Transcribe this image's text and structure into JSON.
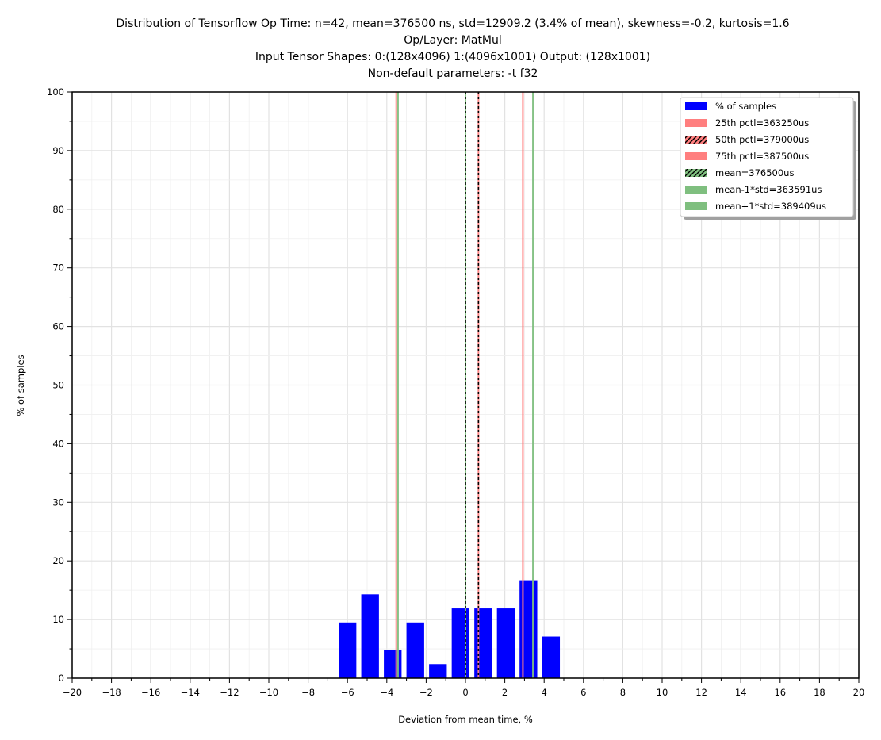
{
  "chart_data": {
    "type": "bar",
    "title": [
      "Distribution of Tensorflow Op Time: n=42, mean=376500 ns, std=12909.2 (3.4% of mean), skewness=-0.2, kurtosis=1.6",
      "Op/Layer: MatMul",
      "Input Tensor Shapes:  0:(128x4096) 1:(4096x1001) Output: (128x1001)",
      "Non-default parameters: -t  f32"
    ],
    "xlabel": "Deviation from mean time, %",
    "ylabel": "% of samples",
    "xlim": [
      -20,
      20
    ],
    "ylim": [
      0,
      100
    ],
    "x_ticks": [
      -20,
      -18,
      -16,
      -14,
      -12,
      -10,
      -8,
      -6,
      -4,
      -2,
      0,
      2,
      4,
      6,
      8,
      10,
      12,
      14,
      16,
      18,
      20
    ],
    "x_tick_labels": [
      "−20",
      "−18",
      "−16",
      "−14",
      "−12",
      "−10",
      "−8",
      "−6",
      "−4",
      "−2",
      "0",
      "2",
      "4",
      "6",
      "8",
      "10",
      "12",
      "14",
      "16",
      "18",
      "20"
    ],
    "y_ticks": [
      0,
      10,
      20,
      30,
      40,
      50,
      60,
      70,
      80,
      90,
      100
    ],
    "y_tick_labels": [
      "0",
      "10",
      "20",
      "30",
      "40",
      "50",
      "60",
      "70",
      "80",
      "90",
      "100"
    ],
    "grid": true,
    "bar_width": 0.9,
    "series": [
      {
        "name": "% of samples",
        "color": "#0000ff",
        "x": [
          -6.0,
          -4.85,
          -3.7,
          -2.55,
          -1.4,
          -0.25,
          0.9,
          2.05,
          3.2,
          4.35
        ],
        "values": [
          9.5,
          14.3,
          4.8,
          9.5,
          2.4,
          11.9,
          11.9,
          11.9,
          16.7,
          7.1
        ]
      }
    ],
    "vlines": [
      {
        "name": "25th pctl=363250us",
        "x": -3.52,
        "color": "#ff7f7f",
        "style": "solid"
      },
      {
        "name": "50th pctl=379000us",
        "x": 0.66,
        "color": "#ff7f7f",
        "style": "hatched"
      },
      {
        "name": "75th pctl=387500us",
        "x": 2.92,
        "color": "#ff7f7f",
        "style": "solid"
      },
      {
        "name": "mean=376500us",
        "x": 0.0,
        "color": "#7fbf7f",
        "style": "hatched"
      },
      {
        "name": "mean-1*std=363591us",
        "x": -3.43,
        "color": "#7fbf7f",
        "style": "solid"
      },
      {
        "name": "mean+1*std=389409us",
        "x": 3.43,
        "color": "#7fbf7f",
        "style": "solid"
      }
    ],
    "legend": {
      "position": "top-right",
      "entries": [
        {
          "label": "% of samples",
          "color": "#0000ff",
          "style": "solid"
        },
        {
          "label": "25th pctl=363250us",
          "color": "#ff7f7f",
          "style": "solid"
        },
        {
          "label": "50th pctl=379000us",
          "color": "#ff7f7f",
          "style": "hatched"
        },
        {
          "label": "75th pctl=387500us",
          "color": "#ff7f7f",
          "style": "solid"
        },
        {
          "label": "mean=376500us",
          "color": "#7fbf7f",
          "style": "hatched"
        },
        {
          "label": "mean-1*std=363591us",
          "color": "#7fbf7f",
          "style": "solid"
        },
        {
          "label": "mean+1*std=389409us",
          "color": "#7fbf7f",
          "style": "solid"
        }
      ]
    }
  }
}
